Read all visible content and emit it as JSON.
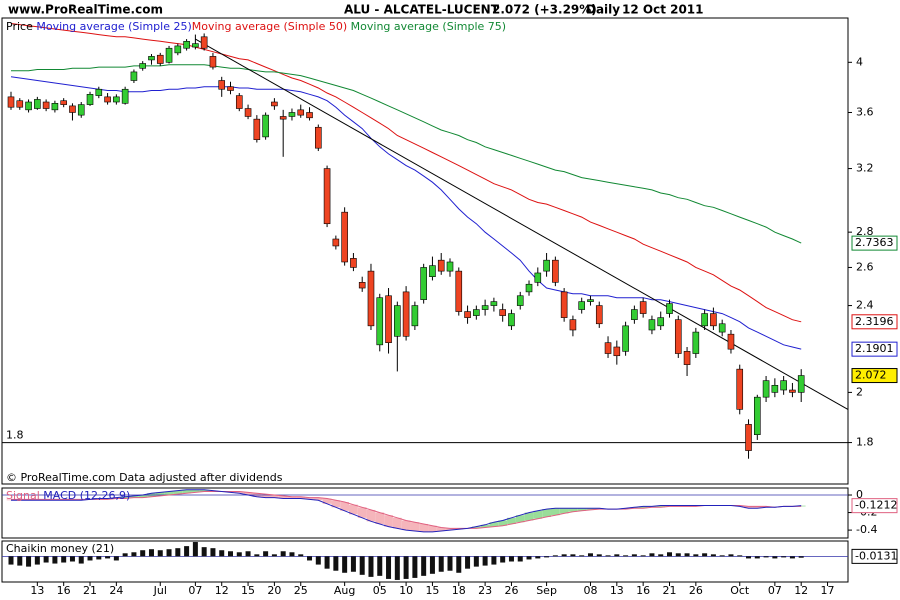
{
  "header": {
    "site": "www.ProRealTime.com",
    "symbol": "ALU - ALCATEL-LUCENT",
    "quote": "2.072 (+3.29%)",
    "period": "Daily",
    "date": "12 Oct 2011"
  },
  "chart_data": [
    {
      "type": "candlestick",
      "price_label": "Price",
      "annotation": "© ProRealTime.com Data adjusted after dividends",
      "categories": [
        null,
        null,
        null,
        "13",
        null,
        null,
        "16",
        null,
        null,
        "21",
        null,
        null,
        "24",
        null,
        null,
        null,
        null,
        "Jul",
        null,
        null,
        null,
        "07",
        null,
        null,
        "12",
        null,
        null,
        "15",
        null,
        null,
        "20",
        null,
        null,
        "25",
        null,
        null,
        null,
        null,
        "Aug",
        null,
        null,
        null,
        "05",
        null,
        null,
        "10",
        null,
        null,
        "15",
        null,
        null,
        "18",
        null,
        null,
        "23",
        null,
        null,
        "26",
        null,
        null,
        null,
        "Sep",
        null,
        null,
        null,
        null,
        "08",
        null,
        null,
        "13",
        null,
        null,
        "16",
        null,
        null,
        "21",
        null,
        null,
        "26",
        null,
        null,
        null,
        null,
        "Oct",
        null,
        null,
        null,
        "07",
        null,
        null,
        "12",
        null,
        null,
        "17"
      ],
      "open": [
        3.72,
        3.69,
        3.62,
        3.63,
        3.68,
        3.62,
        3.69,
        3.65,
        3.58,
        3.66,
        3.73,
        3.72,
        3.68,
        3.67,
        3.85,
        3.95,
        4.02,
        4.06,
        4.0,
        4.08,
        4.12,
        4.13,
        4.22,
        4.05,
        3.85,
        3.8,
        3.73,
        3.63,
        3.55,
        3.42,
        3.68,
        3.57,
        3.57,
        3.62,
        3.6,
        3.49,
        3.2,
        2.76,
        2.92,
        2.65,
        2.52,
        2.58,
        2.21,
        2.45,
        2.25,
        2.47,
        2.3,
        2.43,
        2.55,
        2.64,
        2.58,
        2.58,
        2.37,
        2.35,
        2.38,
        2.4,
        2.38,
        2.3,
        2.4,
        2.47,
        2.52,
        2.58,
        2.64,
        2.47,
        2.33,
        2.38,
        2.42,
        2.4,
        2.22,
        2.2,
        2.18,
        2.33,
        2.42,
        2.28,
        2.3,
        2.36,
        2.33,
        2.18,
        2.17,
        2.3,
        2.36,
        2.27,
        2.26,
        2.1,
        1.87,
        1.83,
        1.98,
        2.0,
        2.01,
        2.01,
        2.0,
        null,
        null,
        null
      ],
      "high": [
        3.76,
        3.71,
        3.7,
        3.72,
        3.7,
        3.69,
        3.71,
        3.67,
        3.68,
        3.76,
        3.8,
        3.75,
        3.74,
        3.8,
        3.94,
        4.01,
        4.07,
        4.08,
        4.14,
        4.16,
        4.2,
        4.24,
        4.25,
        4.08,
        3.88,
        3.84,
        3.75,
        3.66,
        3.58,
        3.6,
        3.71,
        3.62,
        3.63,
        3.66,
        3.64,
        3.51,
        3.22,
        2.78,
        2.95,
        2.68,
        2.55,
        2.62,
        2.46,
        2.49,
        2.42,
        2.5,
        2.42,
        2.62,
        2.66,
        2.68,
        2.65,
        2.6,
        2.4,
        2.4,
        2.43,
        2.44,
        2.41,
        2.38,
        2.47,
        2.53,
        2.6,
        2.68,
        2.66,
        2.49,
        2.35,
        2.44,
        2.45,
        2.42,
        2.25,
        2.23,
        2.32,
        2.4,
        2.44,
        2.35,
        2.37,
        2.43,
        2.35,
        2.2,
        2.29,
        2.38,
        2.39,
        2.33,
        2.28,
        2.12,
        1.89,
        1.99,
        2.07,
        2.06,
        2.07,
        2.04,
        2.1,
        null,
        null,
        null
      ],
      "low": [
        3.62,
        3.62,
        3.6,
        3.62,
        3.61,
        3.6,
        3.64,
        3.54,
        3.56,
        3.65,
        3.71,
        3.66,
        3.66,
        3.66,
        3.83,
        3.93,
        3.98,
        3.97,
        3.99,
        4.06,
        4.1,
        4.11,
        4.1,
        3.94,
        3.72,
        3.74,
        3.61,
        3.55,
        3.38,
        3.4,
        3.62,
        3.28,
        3.54,
        3.56,
        3.54,
        3.32,
        2.83,
        2.7,
        2.61,
        2.58,
        2.47,
        2.28,
        2.18,
        2.17,
        2.09,
        2.23,
        2.28,
        2.41,
        2.53,
        2.56,
        2.55,
        2.35,
        2.31,
        2.33,
        2.35,
        2.37,
        2.32,
        2.28,
        2.38,
        2.45,
        2.5,
        2.55,
        2.5,
        2.32,
        2.25,
        2.36,
        2.4,
        2.29,
        2.15,
        2.12,
        2.16,
        2.31,
        2.34,
        2.26,
        2.28,
        2.34,
        2.15,
        2.07,
        2.15,
        2.28,
        2.28,
        2.25,
        2.17,
        1.91,
        1.74,
        1.81,
        1.96,
        1.98,
        1.99,
        1.98,
        1.96,
        null,
        null,
        null
      ],
      "close": [
        3.64,
        3.64,
        3.68,
        3.7,
        3.63,
        3.67,
        3.66,
        3.6,
        3.66,
        3.74,
        3.78,
        3.68,
        3.72,
        3.78,
        3.92,
        3.99,
        4.05,
        3.99,
        4.12,
        4.14,
        4.18,
        4.16,
        4.12,
        3.96,
        3.78,
        3.77,
        3.63,
        3.57,
        3.4,
        3.58,
        3.65,
        3.55,
        3.6,
        3.58,
        3.56,
        3.34,
        2.85,
        2.72,
        2.63,
        2.6,
        2.49,
        2.3,
        2.44,
        2.22,
        2.4,
        2.25,
        2.4,
        2.6,
        2.61,
        2.58,
        2.63,
        2.37,
        2.34,
        2.38,
        2.4,
        2.42,
        2.35,
        2.36,
        2.45,
        2.51,
        2.57,
        2.64,
        2.52,
        2.34,
        2.28,
        2.42,
        2.43,
        2.31,
        2.17,
        2.16,
        2.3,
        2.38,
        2.36,
        2.33,
        2.34,
        2.41,
        2.17,
        2.12,
        2.27,
        2.36,
        2.3,
        2.31,
        2.19,
        1.93,
        1.77,
        1.98,
        2.05,
        2.03,
        2.05,
        2.0,
        2.072,
        null,
        null,
        null
      ],
      "up_color": "#33cc33",
      "down_color": "#ee4422",
      "series": [
        {
          "name": "Moving average (Simple 25)",
          "color": "#2020d0",
          "values": [
            3.88,
            3.87,
            3.86,
            3.85,
            3.84,
            3.83,
            3.82,
            3.81,
            3.8,
            3.79,
            3.78,
            3.77,
            3.77,
            3.76,
            3.76,
            3.76,
            3.77,
            3.77,
            3.78,
            3.78,
            3.79,
            3.79,
            3.8,
            3.8,
            3.8,
            3.8,
            3.79,
            3.79,
            3.78,
            3.78,
            3.78,
            3.78,
            3.77,
            3.76,
            3.74,
            3.72,
            3.69,
            3.64,
            3.58,
            3.53,
            3.48,
            3.41,
            3.35,
            3.3,
            3.26,
            3.22,
            3.19,
            3.15,
            3.11,
            3.06,
            3.0,
            2.94,
            2.89,
            2.85,
            2.8,
            2.76,
            2.72,
            2.68,
            2.64,
            2.58,
            2.53,
            2.49,
            2.48,
            2.47,
            2.46,
            2.46,
            2.45,
            2.45,
            2.45,
            2.44,
            2.44,
            2.44,
            2.44,
            2.43,
            2.43,
            2.42,
            2.41,
            2.4,
            2.39,
            2.38,
            2.37,
            2.36,
            2.34,
            2.32,
            2.29,
            2.27,
            2.25,
            2.23,
            2.21,
            2.2,
            2.1901,
            null,
            null,
            null
          ]
        },
        {
          "name": "Moving average (Simple 50)",
          "color": "#dd1111",
          "values": [
            4.34,
            4.33,
            4.32,
            4.31,
            4.3,
            4.29,
            4.28,
            4.27,
            4.26,
            4.25,
            4.24,
            4.23,
            4.22,
            4.22,
            4.21,
            4.2,
            4.19,
            4.18,
            4.17,
            4.16,
            4.15,
            4.13,
            4.11,
            4.09,
            4.07,
            4.05,
            4.03,
            4.02,
            3.99,
            3.96,
            3.93,
            3.9,
            3.87,
            3.85,
            3.82,
            3.79,
            3.75,
            3.72,
            3.68,
            3.64,
            3.6,
            3.56,
            3.52,
            3.48,
            3.43,
            3.4,
            3.37,
            3.34,
            3.31,
            3.28,
            3.25,
            3.22,
            3.19,
            3.16,
            3.13,
            3.1,
            3.08,
            3.06,
            3.03,
            3.0,
            2.98,
            2.97,
            2.95,
            2.93,
            2.91,
            2.89,
            2.86,
            2.84,
            2.82,
            2.8,
            2.78,
            2.76,
            2.73,
            2.71,
            2.69,
            2.67,
            2.65,
            2.63,
            2.6,
            2.58,
            2.56,
            2.53,
            2.5,
            2.48,
            2.45,
            2.42,
            2.39,
            2.37,
            2.35,
            2.33,
            2.3196,
            null,
            null,
            null
          ]
        },
        {
          "name": "Moving average (Simple 75)",
          "color": "#118833",
          "values": [
            3.93,
            3.93,
            3.93,
            3.94,
            3.94,
            3.94,
            3.94,
            3.95,
            3.95,
            3.95,
            3.96,
            3.96,
            3.96,
            3.96,
            3.97,
            3.97,
            3.97,
            3.97,
            3.98,
            3.98,
            3.98,
            3.98,
            3.98,
            3.97,
            3.96,
            3.95,
            3.95,
            3.94,
            3.93,
            3.92,
            3.92,
            3.91,
            3.9,
            3.89,
            3.87,
            3.85,
            3.83,
            3.81,
            3.79,
            3.77,
            3.74,
            3.71,
            3.68,
            3.65,
            3.62,
            3.59,
            3.56,
            3.53,
            3.5,
            3.47,
            3.45,
            3.43,
            3.4,
            3.38,
            3.35,
            3.33,
            3.31,
            3.29,
            3.27,
            3.25,
            3.23,
            3.21,
            3.19,
            3.18,
            3.16,
            3.14,
            3.13,
            3.12,
            3.11,
            3.1,
            3.09,
            3.08,
            3.07,
            3.06,
            3.04,
            3.03,
            3.01,
            3.0,
            2.98,
            2.96,
            2.95,
            2.93,
            2.91,
            2.89,
            2.87,
            2.85,
            2.83,
            2.8,
            2.78,
            2.76,
            2.7363,
            null,
            null,
            null
          ]
        }
      ],
      "trend_line": {
        "x": [
          21,
          95.3
        ],
        "values": [
          4.2,
          1.93
        ],
        "color": "#000000"
      },
      "hline": 1.8,
      "log_scale": true,
      "ylim": [
        1.65,
        4.39
      ],
      "yticks": [
        4,
        3.6,
        3.2,
        2.8,
        2.6,
        2.4,
        2,
        1.8
      ]
    },
    {
      "type": "line",
      "fill_up": "#99dd99",
      "fill_down": "#f5b5bb",
      "series": [
        {
          "name": "Signal",
          "color": "#e06080",
          "values": [
            -0.05,
            -0.05,
            -0.05,
            -0.05,
            -0.05,
            -0.05,
            -0.05,
            -0.05,
            -0.05,
            -0.05,
            -0.05,
            -0.05,
            -0.04,
            -0.04,
            -0.03,
            -0.03,
            -0.02,
            -0.01,
            0.0,
            0.01,
            0.02,
            0.03,
            0.04,
            0.04,
            0.04,
            0.04,
            0.04,
            0.03,
            0.02,
            0.01,
            0.0,
            -0.01,
            -0.02,
            -0.02,
            -0.03,
            -0.03,
            -0.04,
            -0.06,
            -0.08,
            -0.11,
            -0.14,
            -0.17,
            -0.2,
            -0.23,
            -0.26,
            -0.29,
            -0.31,
            -0.33,
            -0.35,
            -0.37,
            -0.38,
            -0.38,
            -0.38,
            -0.38,
            -0.37,
            -0.36,
            -0.35,
            -0.33,
            -0.31,
            -0.29,
            -0.27,
            -0.25,
            -0.23,
            -0.21,
            -0.19,
            -0.18,
            -0.17,
            -0.16,
            -0.16,
            -0.16,
            -0.16,
            -0.15,
            -0.15,
            -0.14,
            -0.14,
            -0.13,
            -0.13,
            -0.13,
            -0.13,
            -0.12,
            -0.12,
            -0.12,
            -0.12,
            -0.12,
            -0.13,
            -0.13,
            -0.13,
            -0.14,
            -0.13,
            -0.13,
            -0.13,
            null,
            null,
            null
          ]
        },
        {
          "name": "MACD (12,26,9)",
          "color": "#2222bb",
          "values": [
            -0.06,
            -0.06,
            -0.06,
            -0.06,
            -0.06,
            -0.06,
            -0.06,
            -0.06,
            -0.06,
            -0.05,
            -0.04,
            -0.04,
            -0.03,
            -0.02,
            -0.01,
            0.0,
            0.02,
            0.03,
            0.04,
            0.05,
            0.06,
            0.06,
            0.06,
            0.05,
            0.04,
            0.03,
            0.02,
            0.0,
            -0.02,
            -0.03,
            -0.03,
            -0.04,
            -0.04,
            -0.04,
            -0.05,
            -0.06,
            -0.1,
            -0.14,
            -0.18,
            -0.22,
            -0.26,
            -0.3,
            -0.33,
            -0.36,
            -0.38,
            -0.4,
            -0.41,
            -0.42,
            -0.42,
            -0.41,
            -0.4,
            -0.39,
            -0.38,
            -0.36,
            -0.34,
            -0.31,
            -0.29,
            -0.26,
            -0.23,
            -0.2,
            -0.18,
            -0.16,
            -0.15,
            -0.15,
            -0.15,
            -0.15,
            -0.15,
            -0.15,
            -0.16,
            -0.16,
            -0.15,
            -0.14,
            -0.13,
            -0.13,
            -0.12,
            -0.12,
            -0.12,
            -0.12,
            -0.12,
            -0.12,
            -0.12,
            -0.12,
            -0.12,
            -0.13,
            -0.15,
            -0.15,
            -0.14,
            -0.14,
            -0.13,
            -0.13,
            -0.1212,
            null,
            null,
            null
          ]
        }
      ],
      "ylim": [
        -0.49,
        0.08
      ],
      "yticks": [
        0,
        -0.2,
        -0.4
      ]
    },
    {
      "type": "bar",
      "title": "Chaikin money (21)",
      "color": "#111111",
      "values": [
        -0.08,
        -0.09,
        -0.1,
        -0.08,
        -0.06,
        -0.07,
        -0.06,
        -0.05,
        -0.07,
        -0.04,
        -0.03,
        -0.02,
        -0.04,
        0.03,
        0.04,
        0.06,
        0.07,
        0.06,
        0.07,
        0.08,
        0.1,
        0.14,
        0.09,
        0.08,
        0.06,
        0.05,
        0.04,
        0.05,
        0.02,
        0.05,
        0.02,
        0.05,
        0.04,
        0.02,
        -0.04,
        -0.08,
        -0.12,
        -0.14,
        -0.16,
        -0.15,
        -0.18,
        -0.2,
        -0.19,
        -0.22,
        -0.23,
        -0.22,
        -0.21,
        -0.19,
        -0.17,
        -0.15,
        -0.14,
        -0.16,
        -0.12,
        -0.1,
        -0.09,
        -0.08,
        -0.06,
        -0.05,
        -0.05,
        -0.03,
        -0.02,
        -0.01,
        0.01,
        0.02,
        0.02,
        0.01,
        0.03,
        0.02,
        0.01,
        0.02,
        0.01,
        0.02,
        0.01,
        0.03,
        0.02,
        0.04,
        0.03,
        0.03,
        0.02,
        0.03,
        0.02,
        0.01,
        0.02,
        0.01,
        -0.02,
        -0.02,
        -0.01,
        -0.02,
        -0.01,
        -0.02,
        -0.0131,
        null,
        null,
        null
      ],
      "ylim": [
        -0.25,
        0.15
      ]
    }
  ]
}
